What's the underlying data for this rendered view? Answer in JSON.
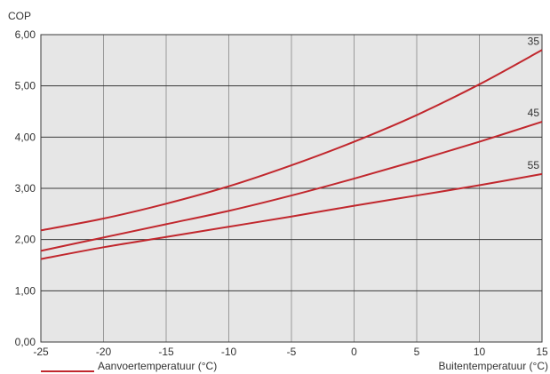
{
  "chart_data": {
    "type": "line",
    "title": "",
    "ylabel": "COP",
    "xlabel": "Buitentemperatuur (°C)",
    "legend_label": "Aanvoertemperatuur (°C)",
    "xlim": [
      -25,
      15
    ],
    "ylim": [
      0,
      6
    ],
    "x_ticks": [
      -25,
      -20,
      -15,
      -10,
      -5,
      0,
      5,
      10,
      15
    ],
    "x_tick_labels": [
      "-25",
      "-20",
      "-15",
      "-10",
      "-5",
      "0",
      "5",
      "10",
      "15"
    ],
    "y_ticks": [
      0,
      1,
      2,
      3,
      4,
      5,
      6
    ],
    "y_tick_labels": [
      "0,00",
      "1,00",
      "2,00",
      "3,00",
      "4,00",
      "5,00",
      "6,00"
    ],
    "grid": true,
    "legend_position": "bottom-left",
    "line_color": "#c1272d",
    "background_color": "#e6e6e6",
    "series": [
      {
        "name": "35",
        "x": [
          -25,
          -20,
          -15,
          -10,
          -5,
          0,
          5,
          10,
          15
        ],
        "values": [
          2.18,
          2.41,
          2.7,
          3.04,
          3.45,
          3.91,
          4.43,
          5.03,
          5.7
        ]
      },
      {
        "name": "45",
        "x": [
          -25,
          -20,
          -15,
          -10,
          -5,
          0,
          5,
          10,
          15
        ],
        "values": [
          1.78,
          2.04,
          2.3,
          2.56,
          2.86,
          3.19,
          3.54,
          3.91,
          4.3
        ]
      },
      {
        "name": "55",
        "x": [
          -25,
          -20,
          -15,
          -10,
          -5,
          0,
          5,
          10,
          15
        ],
        "values": [
          1.62,
          1.85,
          2.05,
          2.25,
          2.45,
          2.66,
          2.86,
          3.06,
          3.28
        ]
      }
    ]
  }
}
